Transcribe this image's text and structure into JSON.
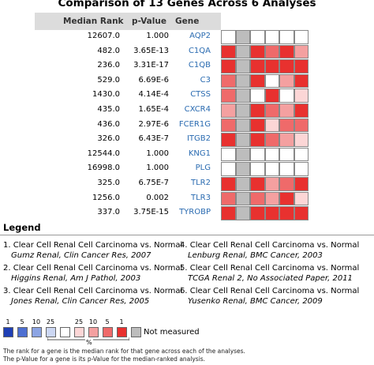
{
  "title": "Comparison of 13 Genes Across 6 Analyses",
  "table": {
    "headers": {
      "rank": "Median Rank",
      "pvalue": "p-Value",
      "gene": "Gene"
    },
    "rows": [
      {
        "rank": "12607.0",
        "pvalue": "1.000",
        "gene": "AQP2",
        "cells": [
          "#ffffff",
          "#bdbdbd",
          "#ffffff",
          "#ffffff",
          "#ffffff",
          "#ffffff"
        ]
      },
      {
        "rank": "482.0",
        "pvalue": "3.65E-13",
        "gene": "C1QA",
        "cells": [
          "#e8312f",
          "#bdbdbd",
          "#e8312f",
          "#ef6a6a",
          "#e8312f",
          "#f4a0a0"
        ]
      },
      {
        "rank": "236.0",
        "pvalue": "3.31E-17",
        "gene": "C1QB",
        "cells": [
          "#e8312f",
          "#bdbdbd",
          "#e8312f",
          "#e8312f",
          "#e8312f",
          "#e8312f"
        ]
      },
      {
        "rank": "529.0",
        "pvalue": "6.69E-6",
        "gene": "C3",
        "cells": [
          "#ef6a6a",
          "#bdbdbd",
          "#e8312f",
          "#ffffff",
          "#f4a0a0",
          "#e8312f"
        ]
      },
      {
        "rank": "1430.0",
        "pvalue": "4.14E-4",
        "gene": "CTSS",
        "cells": [
          "#ef6a6a",
          "#bdbdbd",
          "#ffffff",
          "#e8312f",
          "#ffffff",
          "#fcd6d6"
        ]
      },
      {
        "rank": "435.0",
        "pvalue": "1.65E-4",
        "gene": "CXCR4",
        "cells": [
          "#f4a0a0",
          "#bdbdbd",
          "#e8312f",
          "#ef6a6a",
          "#f4a0a0",
          "#e8312f"
        ]
      },
      {
        "rank": "436.0",
        "pvalue": "2.97E-6",
        "gene": "FCER1G",
        "cells": [
          "#ef6a6a",
          "#bdbdbd",
          "#e8312f",
          "#fcd6d6",
          "#ef6a6a",
          "#ef6a6a"
        ]
      },
      {
        "rank": "326.0",
        "pvalue": "6.43E-7",
        "gene": "ITGB2",
        "cells": [
          "#e8312f",
          "#bdbdbd",
          "#e8312f",
          "#ef6a6a",
          "#f4a0a0",
          "#fcd6d6"
        ]
      },
      {
        "rank": "12544.0",
        "pvalue": "1.000",
        "gene": "KNG1",
        "cells": [
          "#ffffff",
          "#bdbdbd",
          "#ffffff",
          "#ffffff",
          "#ffffff",
          "#ffffff"
        ]
      },
      {
        "rank": "16998.0",
        "pvalue": "1.000",
        "gene": "PLG",
        "cells": [
          "#ffffff",
          "#bdbdbd",
          "#ffffff",
          "#ffffff",
          "#ffffff",
          "#ffffff"
        ]
      },
      {
        "rank": "325.0",
        "pvalue": "6.75E-7",
        "gene": "TLR2",
        "cells": [
          "#e8312f",
          "#bdbdbd",
          "#e8312f",
          "#f4a0a0",
          "#ef6a6a",
          "#e8312f"
        ]
      },
      {
        "rank": "1256.0",
        "pvalue": "0.002",
        "gene": "TLR3",
        "cells": [
          "#ef6a6a",
          "#bdbdbd",
          "#ef6a6a",
          "#f4a0a0",
          "#e8312f",
          "#fcd6d6"
        ]
      },
      {
        "rank": "337.0",
        "pvalue": "3.75E-15",
        "gene": "TYROBP",
        "cells": [
          "#e8312f",
          "#bdbdbd",
          "#e8312f",
          "#e8312f",
          "#e8312f",
          "#e8312f"
        ]
      }
    ]
  },
  "legend": {
    "title": "Legend",
    "items": [
      {
        "line1": "1. Clear Cell Renal Cell Carcinoma vs. Normal",
        "line2": "Gumz Renal, Clin Cancer Res, 2007"
      },
      {
        "line1": "2. Clear Cell Renal Cell Carcinoma vs. Normal",
        "line2": "Higgins Renal, Am J Pathol, 2003"
      },
      {
        "line1": "3. Clear Cell Renal Cell Carcinoma vs. Normal",
        "line2": "Jones Renal, Clin Cancer Res, 2005"
      },
      {
        "line1": "4. Clear Cell Renal Cell Carcinoma vs. Normal",
        "line2": "Lenburg Renal, BMC Cancer, 2003"
      },
      {
        "line1": "5. Clear Cell Renal Cell Carcinoma vs. Normal",
        "line2": "TCGA Renal 2, No Associated Paper, 2011"
      },
      {
        "line1": "6. Clear Cell Renal Cell Carcinoma vs. Normal",
        "line2": "Yusenko Renal, BMC Cancer, 2009"
      }
    ]
  },
  "scale": {
    "labels": [
      "1",
      "5",
      "10",
      "25",
      "",
      "25",
      "10",
      "5",
      "1"
    ],
    "colors": [
      "#1f3fb5",
      "#4d6fd1",
      "#8ca4e3",
      "#ccd7f3",
      "#ffffff",
      "#fcd6d6",
      "#f4a0a0",
      "#ef6a6a",
      "#e8312f"
    ],
    "percent_label": "%",
    "not_measured_color": "#bdbdbd",
    "not_measured_label": "Not measured"
  },
  "footnotes": [
    "The rank for a gene is the median rank for that gene across each of the analyses.",
    "The p-Value for a gene is its p-Value for the median-ranked analysis."
  ]
}
